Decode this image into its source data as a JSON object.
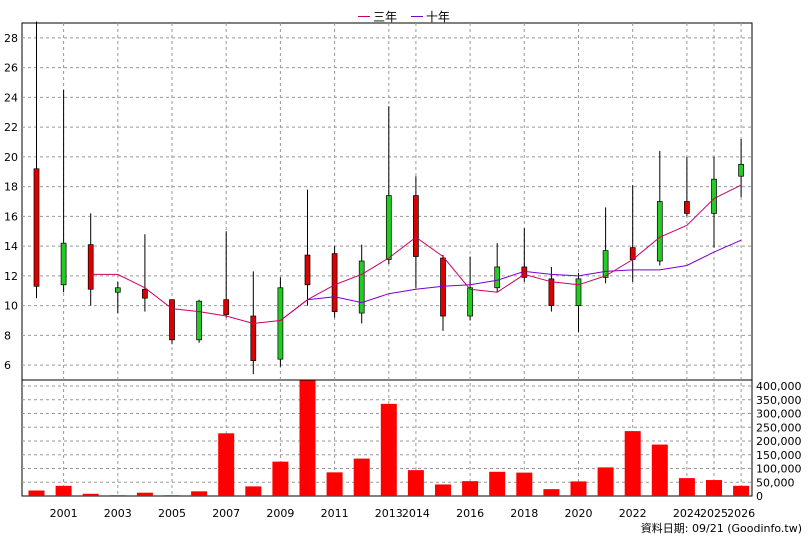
{
  "legend": {
    "three_year": "三年",
    "ten_year": "十年"
  },
  "source_label": "資料日期: 09/21  (Goodinfo.tw)",
  "colors": {
    "up": "#dd0000",
    "down": "#22cc22",
    "volume": "#ff0000",
    "ma3": "#cc0066",
    "ma10": "#7a00cc",
    "grid": "#999999",
    "wick": "#000000"
  },
  "chart_data": {
    "type": "candlestick+bar",
    "price_axis": {
      "ylim": [
        5,
        29
      ],
      "ticks": [
        6,
        8,
        10,
        12,
        14,
        16,
        18,
        20,
        22,
        24,
        26,
        28
      ]
    },
    "volume_axis": {
      "ylim": [
        0,
        400000
      ],
      "ticks": [
        0,
        50000,
        100000,
        150000,
        200000,
        250000,
        300000,
        350000,
        400000
      ],
      "tick_labels": [
        "0",
        "50,000",
        "100,000",
        "150,000",
        "200,000",
        "250,000",
        "300,000",
        "350,000",
        "400,000"
      ]
    },
    "x_labels": [
      {
        "year": 2001,
        "label": "2001"
      },
      {
        "year": 2003,
        "label": "2003"
      },
      {
        "year": 2005,
        "label": "2005"
      },
      {
        "year": 2007,
        "label": "2007"
      },
      {
        "year": 2009,
        "label": "2009"
      },
      {
        "year": 2011,
        "label": "2011"
      },
      {
        "year": 2013,
        "label": "2013"
      },
      {
        "year": 2014,
        "label": "2014"
      },
      {
        "year": 2016,
        "label": "2016"
      },
      {
        "year": 2018,
        "label": "2018"
      },
      {
        "year": 2020,
        "label": "2020"
      },
      {
        "year": 2022,
        "label": "2022"
      },
      {
        "year": 2024,
        "label": "2024"
      },
      {
        "year": 2025,
        "label": "2025"
      },
      {
        "year": 2026,
        "label": "2026"
      }
    ],
    "candles": [
      {
        "year": 2000,
        "open": 11.3,
        "close": 19.2,
        "high": 29.1,
        "low": 10.5
      },
      {
        "year": 2001,
        "open": 14.2,
        "close": 11.4,
        "high": 24.5,
        "low": 10.9
      },
      {
        "year": 2002,
        "open": 11.1,
        "close": 14.1,
        "high": 16.2,
        "low": 10.0
      },
      {
        "year": 2003,
        "open": 11.2,
        "close": 10.9,
        "high": 11.6,
        "low": 9.5
      },
      {
        "year": 2004,
        "open": 10.5,
        "close": 11.1,
        "high": 14.8,
        "low": 9.6
      },
      {
        "year": 2005,
        "open": 7.7,
        "close": 10.4,
        "high": 10.4,
        "low": 7.4
      },
      {
        "year": 2006,
        "open": 10.3,
        "close": 7.7,
        "high": 10.4,
        "low": 7.5
      },
      {
        "year": 2007,
        "open": 9.4,
        "close": 10.4,
        "high": 15.0,
        "low": 9.2
      },
      {
        "year": 2008,
        "open": 6.3,
        "close": 9.3,
        "high": 12.3,
        "low": 5.4
      },
      {
        "year": 2009,
        "open": 11.2,
        "close": 6.4,
        "high": 11.9,
        "low": 5.9
      },
      {
        "year": 2010,
        "open": 11.4,
        "close": 13.4,
        "high": 17.8,
        "low": 10.0
      },
      {
        "year": 2011,
        "open": 9.6,
        "close": 13.5,
        "high": 14.0,
        "low": 9.2
      },
      {
        "year": 2012,
        "open": 13.0,
        "close": 9.5,
        "high": 14.1,
        "low": 8.8
      },
      {
        "year": 2013,
        "open": 17.4,
        "close": 13.1,
        "high": 23.4,
        "low": 12.8
      },
      {
        "year": 2014,
        "open": 13.3,
        "close": 17.4,
        "high": 18.7,
        "low": 11.2
      },
      {
        "year": 2015,
        "open": 9.3,
        "close": 13.2,
        "high": 13.4,
        "low": 8.3
      },
      {
        "year": 2016,
        "open": 11.2,
        "close": 9.3,
        "high": 13.3,
        "low": 9.0
      },
      {
        "year": 2017,
        "open": 12.6,
        "close": 11.2,
        "high": 14.2,
        "low": 10.9
      },
      {
        "year": 2018,
        "open": 11.9,
        "close": 12.6,
        "high": 15.2,
        "low": 11.6
      },
      {
        "year": 2019,
        "open": 10.0,
        "close": 11.8,
        "high": 12.6,
        "low": 9.6
      },
      {
        "year": 2020,
        "open": 11.8,
        "close": 10.0,
        "high": 12.2,
        "low": 8.2
      },
      {
        "year": 2021,
        "open": 13.7,
        "close": 11.9,
        "high": 16.6,
        "low": 11.5
      },
      {
        "year": 2022,
        "open": 13.1,
        "close": 13.9,
        "high": 18.1,
        "low": 11.6
      },
      {
        "year": 2023,
        "open": 17.0,
        "close": 13.0,
        "high": 20.4,
        "low": 12.7
      },
      {
        "year": 2024,
        "open": 16.2,
        "close": 17.0,
        "high": 20.0,
        "low": 16.0
      },
      {
        "year": 2025,
        "open": 18.5,
        "close": 16.2,
        "high": 20.0,
        "low": 13.9
      },
      {
        "year": 2026,
        "open": 19.5,
        "close": 18.7,
        "high": 21.2,
        "low": 17.3
      }
    ],
    "ma3": [
      {
        "year": 2002,
        "value": 12.1
      },
      {
        "year": 2003,
        "value": 12.1
      },
      {
        "year": 2004,
        "value": 11.2
      },
      {
        "year": 2005,
        "value": 9.8
      },
      {
        "year": 2006,
        "value": 9.6
      },
      {
        "year": 2007,
        "value": 9.3
      },
      {
        "year": 2008,
        "value": 8.8
      },
      {
        "year": 2009,
        "value": 9.0
      },
      {
        "year": 2010,
        "value": 10.4
      },
      {
        "year": 2011,
        "value": 11.4
      },
      {
        "year": 2012,
        "value": 12.1
      },
      {
        "year": 2013,
        "value": 13.2
      },
      {
        "year": 2014,
        "value": 14.6
      },
      {
        "year": 2015,
        "value": 13.3
      },
      {
        "year": 2016,
        "value": 11.1
      },
      {
        "year": 2017,
        "value": 10.9
      },
      {
        "year": 2018,
        "value": 12.1
      },
      {
        "year": 2019,
        "value": 11.6
      },
      {
        "year": 2020,
        "value": 11.4
      },
      {
        "year": 2021,
        "value": 12.0
      },
      {
        "year": 2022,
        "value": 13.1
      },
      {
        "year": 2023,
        "value": 14.6
      },
      {
        "year": 2024,
        "value": 15.4
      },
      {
        "year": 2025,
        "value": 17.2
      },
      {
        "year": 2026,
        "value": 18.1
      }
    ],
    "ma10": [
      {
        "year": 2009,
        "value": 9.0
      },
      {
        "year": 2010,
        "value": 10.4
      },
      {
        "year": 2011,
        "value": 10.6
      },
      {
        "year": 2012,
        "value": 10.2
      },
      {
        "year": 2013,
        "value": 10.8
      },
      {
        "year": 2014,
        "value": 11.1
      },
      {
        "year": 2015,
        "value": 11.3
      },
      {
        "year": 2016,
        "value": 11.4
      },
      {
        "year": 2017,
        "value": 11.7
      },
      {
        "year": 2018,
        "value": 12.3
      },
      {
        "year": 2019,
        "value": 12.1
      },
      {
        "year": 2020,
        "value": 12.0
      },
      {
        "year": 2021,
        "value": 12.3
      },
      {
        "year": 2022,
        "value": 12.4
      },
      {
        "year": 2023,
        "value": 12.4
      },
      {
        "year": 2024,
        "value": 12.7
      },
      {
        "year": 2025,
        "value": 13.6
      },
      {
        "year": 2026,
        "value": 14.4
      }
    ],
    "volume": [
      {
        "year": 2000,
        "value": 20000
      },
      {
        "year": 2001,
        "value": 37000
      },
      {
        "year": 2002,
        "value": 8000
      },
      {
        "year": 2003,
        "value": 3000
      },
      {
        "year": 2004,
        "value": 12000
      },
      {
        "year": 2005,
        "value": 3000
      },
      {
        "year": 2006,
        "value": 17000
      },
      {
        "year": 2007,
        "value": 228000
      },
      {
        "year": 2008,
        "value": 35000
      },
      {
        "year": 2009,
        "value": 125000
      },
      {
        "year": 2010,
        "value": 420000
      },
      {
        "year": 2011,
        "value": 86000
      },
      {
        "year": 2012,
        "value": 136000
      },
      {
        "year": 2013,
        "value": 335000
      },
      {
        "year": 2014,
        "value": 94000
      },
      {
        "year": 2015,
        "value": 42000
      },
      {
        "year": 2016,
        "value": 54000
      },
      {
        "year": 2017,
        "value": 88000
      },
      {
        "year": 2018,
        "value": 85000
      },
      {
        "year": 2019,
        "value": 25000
      },
      {
        "year": 2020,
        "value": 53000
      },
      {
        "year": 2021,
        "value": 104000
      },
      {
        "year": 2022,
        "value": 236000
      },
      {
        "year": 2023,
        "value": 187000
      },
      {
        "year": 2024,
        "value": 65000
      },
      {
        "year": 2025,
        "value": 58000
      },
      {
        "year": 2026,
        "value": 37000
      }
    ]
  }
}
